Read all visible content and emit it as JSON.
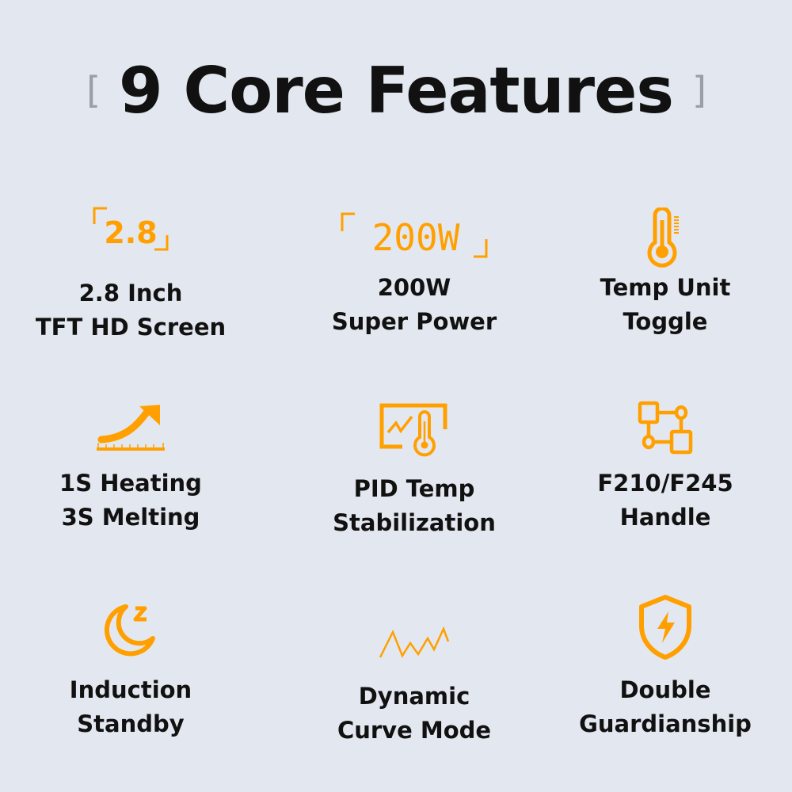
{
  "title": {
    "open_bracket": "[",
    "text": "9 Core Features",
    "close_bracket": "]"
  },
  "accent_color": "#ffa000",
  "features": [
    {
      "icon": "screen-size-2.8-icon",
      "icon_text": "2.8",
      "lines": [
        "2.8 Inch",
        "TFT HD Screen"
      ]
    },
    {
      "icon": "power-200w-icon",
      "icon_text": "200W",
      "lines": [
        "200W",
        "Super Power"
      ]
    },
    {
      "icon": "thermometer-icon",
      "lines": [
        "Temp Unit",
        "Toggle"
      ]
    },
    {
      "icon": "rising-arrow-icon",
      "lines": [
        "1S Heating",
        "3S Melting"
      ]
    },
    {
      "icon": "chart-thermometer-icon",
      "lines": [
        "PID Temp",
        "Stabilization"
      ]
    },
    {
      "icon": "connected-nodes-icon",
      "lines": [
        "F210/F245",
        "Handle"
      ]
    },
    {
      "icon": "moon-sleep-icon",
      "lines": [
        "Induction",
        "Standby"
      ]
    },
    {
      "icon": "zigzag-curve-icon",
      "lines": [
        "Dynamic",
        "Curve Mode"
      ]
    },
    {
      "icon": "shield-bolt-icon",
      "lines": [
        "Double",
        "Guardianship"
      ]
    }
  ]
}
